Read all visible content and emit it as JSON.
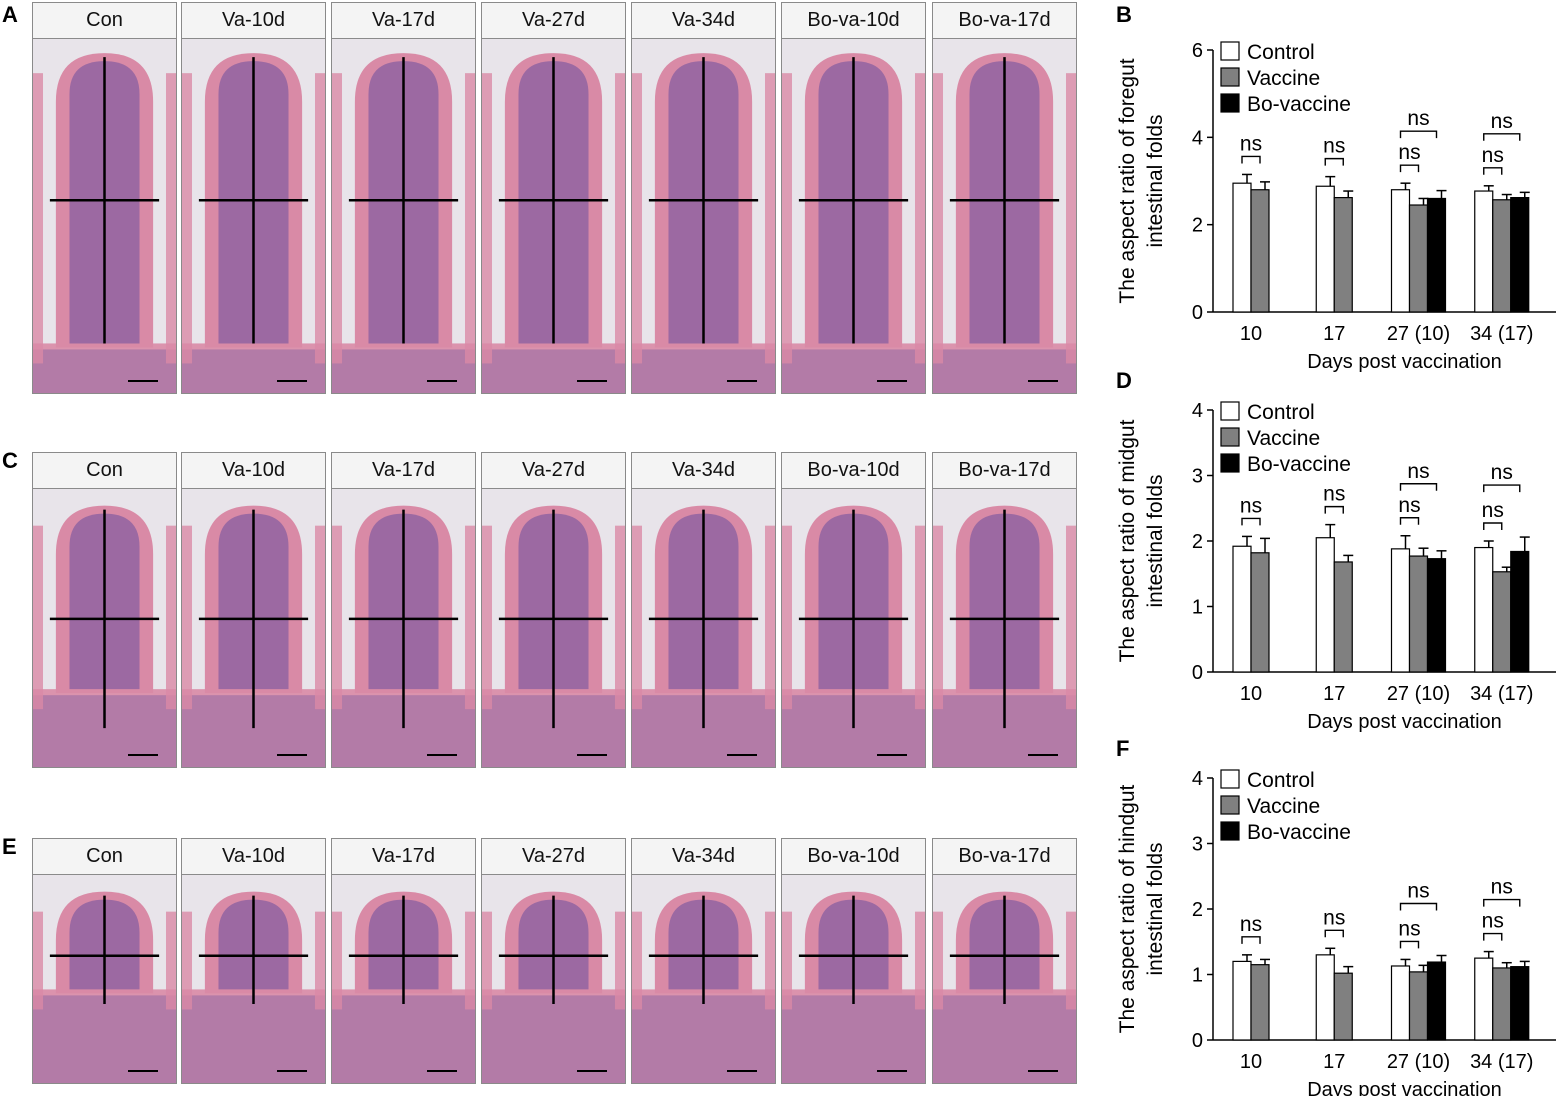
{
  "figure": {
    "panel_letters": {
      "A": "A",
      "B": "B",
      "C": "C",
      "D": "D",
      "E": "E",
      "F": "F"
    },
    "micrograph_labels": [
      "Con",
      "Va-10d",
      "Va-17d",
      "Va-27d",
      "Va-34d",
      "Bo-va-10d",
      "Bo-va-17d"
    ],
    "stain_colors": {
      "background": "#dcd6dc",
      "tissue_pink": "#d98aa6",
      "nuclei": "#6a4f9e",
      "lumen": "#e8e4ea"
    }
  },
  "chart_data": [
    {
      "type": "bar",
      "panel": "B",
      "ylabel_lines": [
        "The aspect ratio of foregut",
        "intestinal folds"
      ],
      "xlabel": "Days post vaccination",
      "categories": [
        "10",
        "17",
        "27 (10)",
        "34 (17)"
      ],
      "ylim": [
        0,
        6
      ],
      "yticks": [
        "0",
        "2",
        "4",
        "6"
      ],
      "legend": [
        "Control",
        "Vaccine",
        "Bo-vaccine"
      ],
      "series": [
        {
          "name": "Control",
          "color": "#ffffff",
          "values": [
            2.95,
            2.88,
            2.8,
            2.77
          ],
          "errors": [
            0.2,
            0.22,
            0.15,
            0.12
          ]
        },
        {
          "name": "Vaccine",
          "color": "#808080",
          "values": [
            2.8,
            2.62,
            2.45,
            2.57
          ],
          "errors": [
            0.18,
            0.15,
            0.15,
            0.12
          ]
        },
        {
          "name": "Bo-vaccine",
          "color": "#000000",
          "values": [
            null,
            null,
            2.6,
            2.62
          ],
          "errors": [
            null,
            null,
            0.18,
            0.12
          ]
        }
      ],
      "significance": [
        {
          "label": "ns",
          "category": 0,
          "pair": [
            0,
            1
          ]
        },
        {
          "label": "ns",
          "category": 1,
          "pair": [
            0,
            1
          ]
        },
        {
          "label": "ns",
          "category": 2,
          "pair": [
            0,
            1
          ]
        },
        {
          "label": "ns",
          "category": 2,
          "pair": [
            0,
            2
          ]
        },
        {
          "label": "ns",
          "category": 3,
          "pair": [
            0,
            1
          ]
        },
        {
          "label": "ns",
          "category": 3,
          "pair": [
            0,
            2
          ]
        }
      ]
    },
    {
      "type": "bar",
      "panel": "D",
      "ylabel_lines": [
        "The aspect ratio of midgut",
        "intestinal folds"
      ],
      "xlabel": "Days post vaccination",
      "categories": [
        "10",
        "17",
        "27 (10)",
        "34 (17)"
      ],
      "ylim": [
        0,
        4
      ],
      "yticks": [
        "0",
        "1",
        "2",
        "3",
        "4"
      ],
      "legend": [
        "Control",
        "Vaccine",
        "Bo-vaccine"
      ],
      "series": [
        {
          "name": "Control",
          "color": "#ffffff",
          "values": [
            1.92,
            2.05,
            1.88,
            1.9
          ],
          "errors": [
            0.15,
            0.2,
            0.2,
            0.1
          ]
        },
        {
          "name": "Vaccine",
          "color": "#808080",
          "values": [
            1.82,
            1.68,
            1.77,
            1.53
          ],
          "errors": [
            0.22,
            0.1,
            0.12,
            0.07
          ]
        },
        {
          "name": "Bo-vaccine",
          "color": "#000000",
          "values": [
            null,
            null,
            1.73,
            1.84
          ],
          "errors": [
            null,
            null,
            0.12,
            0.22
          ]
        }
      ],
      "significance": [
        {
          "label": "ns",
          "category": 0,
          "pair": [
            0,
            1
          ]
        },
        {
          "label": "ns",
          "category": 1,
          "pair": [
            0,
            1
          ]
        },
        {
          "label": "ns",
          "category": 2,
          "pair": [
            0,
            1
          ]
        },
        {
          "label": "ns",
          "category": 2,
          "pair": [
            0,
            2
          ]
        },
        {
          "label": "ns",
          "category": 3,
          "pair": [
            0,
            1
          ]
        },
        {
          "label": "ns",
          "category": 3,
          "pair": [
            0,
            2
          ]
        }
      ]
    },
    {
      "type": "bar",
      "panel": "F",
      "ylabel_lines": [
        "The aspect ratio of hindgut",
        "intestinal folds"
      ],
      "xlabel": "Days post vaccination",
      "categories": [
        "10",
        "17",
        "27 (10)",
        "34 (17)"
      ],
      "ylim": [
        0,
        4
      ],
      "yticks": [
        "0",
        "1",
        "2",
        "3",
        "4"
      ],
      "legend": [
        "Control",
        "Vaccine",
        "Bo-vaccine"
      ],
      "series": [
        {
          "name": "Control",
          "color": "#ffffff",
          "values": [
            1.2,
            1.3,
            1.13,
            1.25
          ],
          "errors": [
            0.1,
            0.1,
            0.1,
            0.1
          ]
        },
        {
          "name": "Vaccine",
          "color": "#808080",
          "values": [
            1.15,
            1.02,
            1.04,
            1.1
          ],
          "errors": [
            0.08,
            0.1,
            0.1,
            0.08
          ]
        },
        {
          "name": "Bo-vaccine",
          "color": "#000000",
          "values": [
            null,
            null,
            1.19,
            1.12
          ],
          "errors": [
            null,
            null,
            0.1,
            0.08
          ]
        }
      ],
      "significance": [
        {
          "label": "ns",
          "category": 0,
          "pair": [
            0,
            1
          ]
        },
        {
          "label": "ns",
          "category": 1,
          "pair": [
            0,
            1
          ]
        },
        {
          "label": "ns",
          "category": 2,
          "pair": [
            0,
            1
          ]
        },
        {
          "label": "ns",
          "category": 2,
          "pair": [
            0,
            2
          ]
        },
        {
          "label": "ns",
          "category": 3,
          "pair": [
            0,
            1
          ]
        },
        {
          "label": "ns",
          "category": 3,
          "pair": [
            0,
            2
          ]
        }
      ]
    }
  ]
}
